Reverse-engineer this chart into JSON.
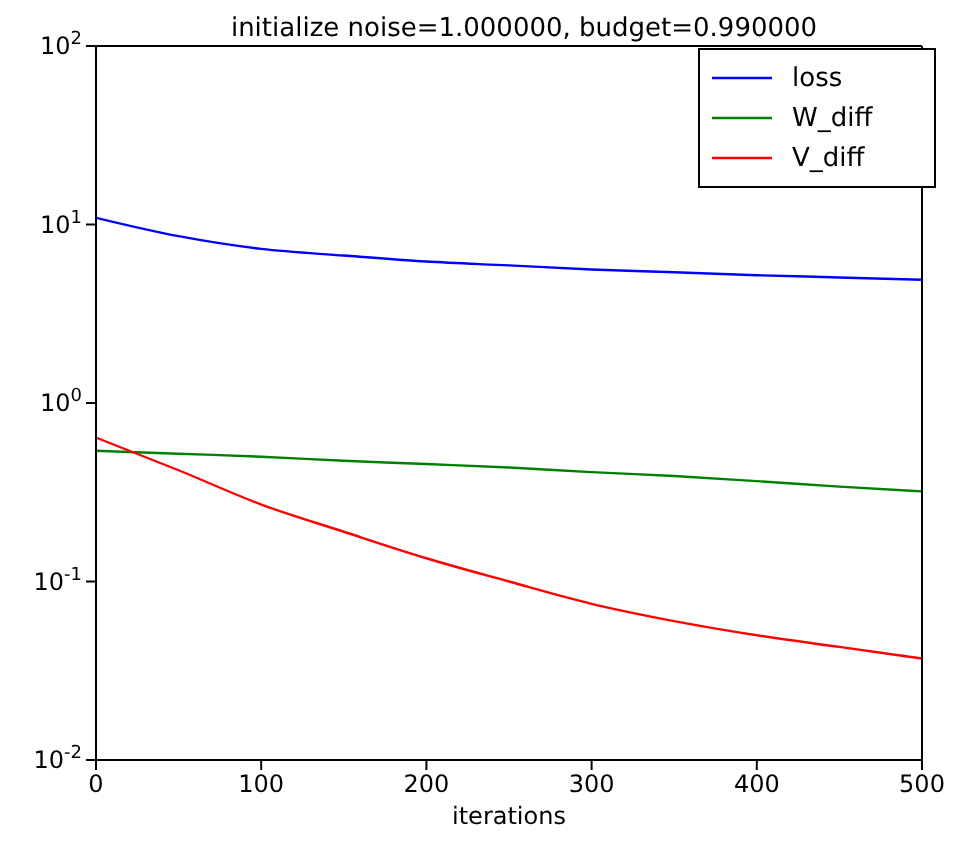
{
  "chart_data": {
    "type": "line",
    "title": "initialize noise=1.000000, budget=0.990000",
    "xlabel": "iterations",
    "x": [
      0,
      50,
      100,
      150,
      200,
      250,
      300,
      350,
      400,
      450,
      500
    ],
    "series": [
      {
        "name": "loss",
        "color": "#0000ff",
        "values": [
          10.9,
          8.6,
          7.3,
          6.7,
          6.2,
          5.9,
          5.6,
          5.4,
          5.2,
          5.05,
          4.9
        ]
      },
      {
        "name": "W_diff",
        "color": "#008000",
        "values": [
          0.54,
          0.52,
          0.5,
          0.475,
          0.455,
          0.435,
          0.41,
          0.39,
          0.365,
          0.34,
          0.32
        ]
      },
      {
        "name": "V_diff",
        "color": "#ff0000",
        "values": [
          0.64,
          0.42,
          0.27,
          0.19,
          0.135,
          0.1,
          0.075,
          0.06,
          0.05,
          0.043,
          0.037
        ]
      }
    ],
    "log": "y",
    "xlim": [
      0,
      500
    ],
    "xticks": [
      0,
      100,
      200,
      300,
      400,
      500
    ],
    "ylim": [
      0.01,
      100
    ],
    "yticks": [
      {
        "value": 0.01,
        "label": "10$^{-2}$"
      },
      {
        "value": 0.1,
        "label": "10$^{-1}$"
      },
      {
        "value": 1,
        "label": "10$^{0}$"
      },
      {
        "value": 10,
        "label": "10$^{1}$"
      },
      {
        "value": 100,
        "label": "10$^{2}$"
      }
    ],
    "grid": false,
    "legend": "top right",
    "marker": "none",
    "line_style": "solid"
  }
}
